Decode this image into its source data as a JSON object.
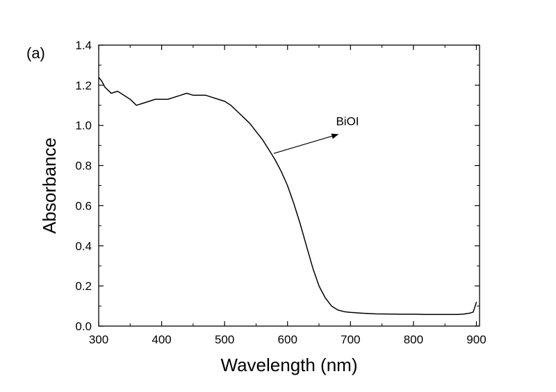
{
  "chart_data": {
    "type": "line",
    "panel_label": "(a)",
    "xlabel": "Wavelength (nm)",
    "ylabel": "Absorbance",
    "xlim": [
      300,
      905
    ],
    "ylim": [
      0.0,
      1.4
    ],
    "xticks": [
      300,
      400,
      500,
      600,
      700,
      800,
      900
    ],
    "xtick_labels": [
      "300",
      "400",
      "500",
      "600",
      "700",
      "800",
      "900"
    ],
    "yticks": [
      0.0,
      0.2,
      0.4,
      0.6,
      0.8,
      1.0,
      1.2,
      1.4
    ],
    "ytick_labels": [
      "0.0",
      "0.2",
      "0.4",
      "0.6",
      "0.8",
      "1.0",
      "1.2",
      "1.4"
    ],
    "grid": false,
    "legend": "none",
    "series": [
      {
        "name": "BiOI",
        "color": "#000000",
        "x": [
          300,
          305,
          310,
          320,
          330,
          340,
          350,
          360,
          370,
          380,
          390,
          400,
          410,
          420,
          430,
          440,
          450,
          460,
          470,
          480,
          490,
          500,
          510,
          520,
          530,
          540,
          550,
          560,
          570,
          580,
          590,
          600,
          610,
          620,
          630,
          640,
          650,
          660,
          670,
          680,
          690,
          700,
          720,
          740,
          760,
          780,
          800,
          820,
          840,
          860,
          870,
          880,
          890,
          895,
          900
        ],
        "y": [
          1.24,
          1.22,
          1.19,
          1.16,
          1.17,
          1.15,
          1.13,
          1.1,
          1.11,
          1.12,
          1.13,
          1.13,
          1.13,
          1.14,
          1.15,
          1.16,
          1.15,
          1.15,
          1.15,
          1.14,
          1.13,
          1.12,
          1.1,
          1.07,
          1.04,
          1.01,
          0.97,
          0.93,
          0.88,
          0.83,
          0.77,
          0.7,
          0.61,
          0.51,
          0.4,
          0.29,
          0.2,
          0.14,
          0.1,
          0.08,
          0.072,
          0.068,
          0.064,
          0.061,
          0.06,
          0.059,
          0.059,
          0.058,
          0.058,
          0.058,
          0.058,
          0.06,
          0.065,
          0.07,
          0.12
        ]
      }
    ],
    "annotations": [
      {
        "text": "BiOI",
        "arrow_from": [
          578,
          0.86
        ],
        "arrow_to": [
          680,
          0.955
        ],
        "text_at": [
          677,
          1.0
        ]
      }
    ]
  }
}
